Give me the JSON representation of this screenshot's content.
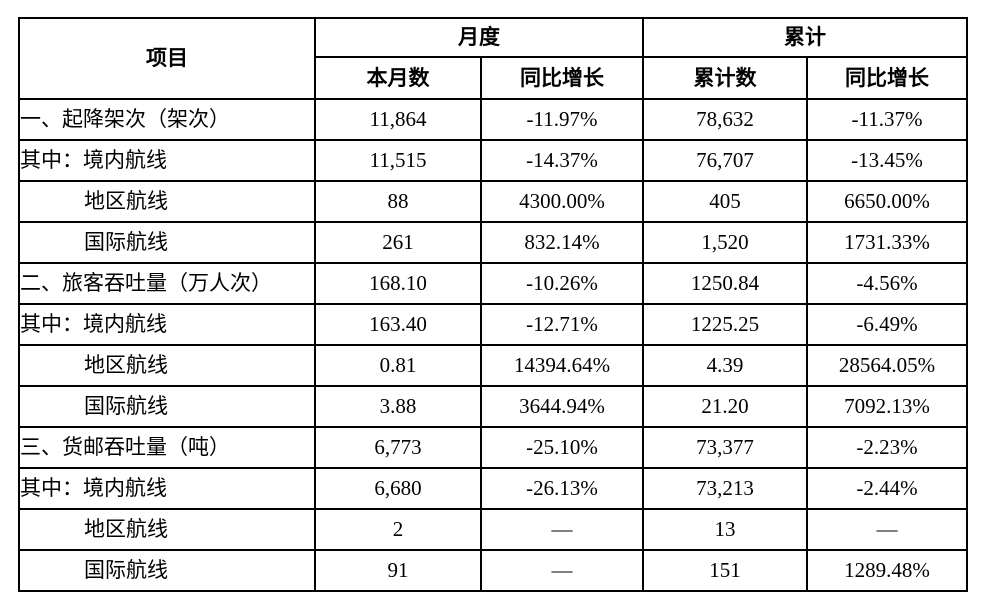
{
  "table": {
    "header": {
      "item_label": "项目",
      "monthly_group": "月度",
      "cumulative_group": "累计",
      "monthly_value_label": "本月数",
      "monthly_yoy_label": "同比增长",
      "cumulative_value_label": "累计数",
      "cumulative_yoy_label": "同比增长"
    },
    "rows": [
      {
        "item": "一、起降架次（架次）",
        "indent": 0,
        "monthly": "11,864",
        "monthly_yoy": "-11.97%",
        "cumulative": "78,632",
        "cumulative_yoy": "-11.37%"
      },
      {
        "item": "其中：境内航线",
        "indent": 0,
        "monthly": "11,515",
        "monthly_yoy": "-14.37%",
        "cumulative": "76,707",
        "cumulative_yoy": "-13.45%"
      },
      {
        "item": "地区航线",
        "indent": 1,
        "monthly": "88",
        "monthly_yoy": "4300.00%",
        "cumulative": "405",
        "cumulative_yoy": "6650.00%"
      },
      {
        "item": "国际航线",
        "indent": 1,
        "monthly": "261",
        "monthly_yoy": "832.14%",
        "cumulative": "1,520",
        "cumulative_yoy": "1731.33%"
      },
      {
        "item": "二、旅客吞吐量（万人次）",
        "indent": 0,
        "monthly": "168.10",
        "monthly_yoy": "-10.26%",
        "cumulative": "1250.84",
        "cumulative_yoy": "-4.56%"
      },
      {
        "item": "其中：境内航线",
        "indent": 0,
        "monthly": "163.40",
        "monthly_yoy": "-12.71%",
        "cumulative": "1225.25",
        "cumulative_yoy": "-6.49%"
      },
      {
        "item": "地区航线",
        "indent": 1,
        "monthly": "0.81",
        "monthly_yoy": "14394.64%",
        "cumulative": "4.39",
        "cumulative_yoy": "28564.05%"
      },
      {
        "item": "国际航线",
        "indent": 1,
        "monthly": "3.88",
        "monthly_yoy": "3644.94%",
        "cumulative": "21.20",
        "cumulative_yoy": "7092.13%"
      },
      {
        "item": "三、货邮吞吐量（吨）",
        "indent": 0,
        "monthly": "6,773",
        "monthly_yoy": "-25.10%",
        "cumulative": "73,377",
        "cumulative_yoy": "-2.23%"
      },
      {
        "item": "其中：境内航线",
        "indent": 0,
        "monthly": "6,680",
        "monthly_yoy": "-26.13%",
        "cumulative": "73,213",
        "cumulative_yoy": "-2.44%"
      },
      {
        "item": "地区航线",
        "indent": 1,
        "monthly": "2",
        "monthly_yoy": "—",
        "cumulative": "13",
        "cumulative_yoy": "—"
      },
      {
        "item": "国际航线",
        "indent": 1,
        "monthly": "91",
        "monthly_yoy": "—",
        "cumulative": "151",
        "cumulative_yoy": "1289.48%"
      }
    ]
  }
}
